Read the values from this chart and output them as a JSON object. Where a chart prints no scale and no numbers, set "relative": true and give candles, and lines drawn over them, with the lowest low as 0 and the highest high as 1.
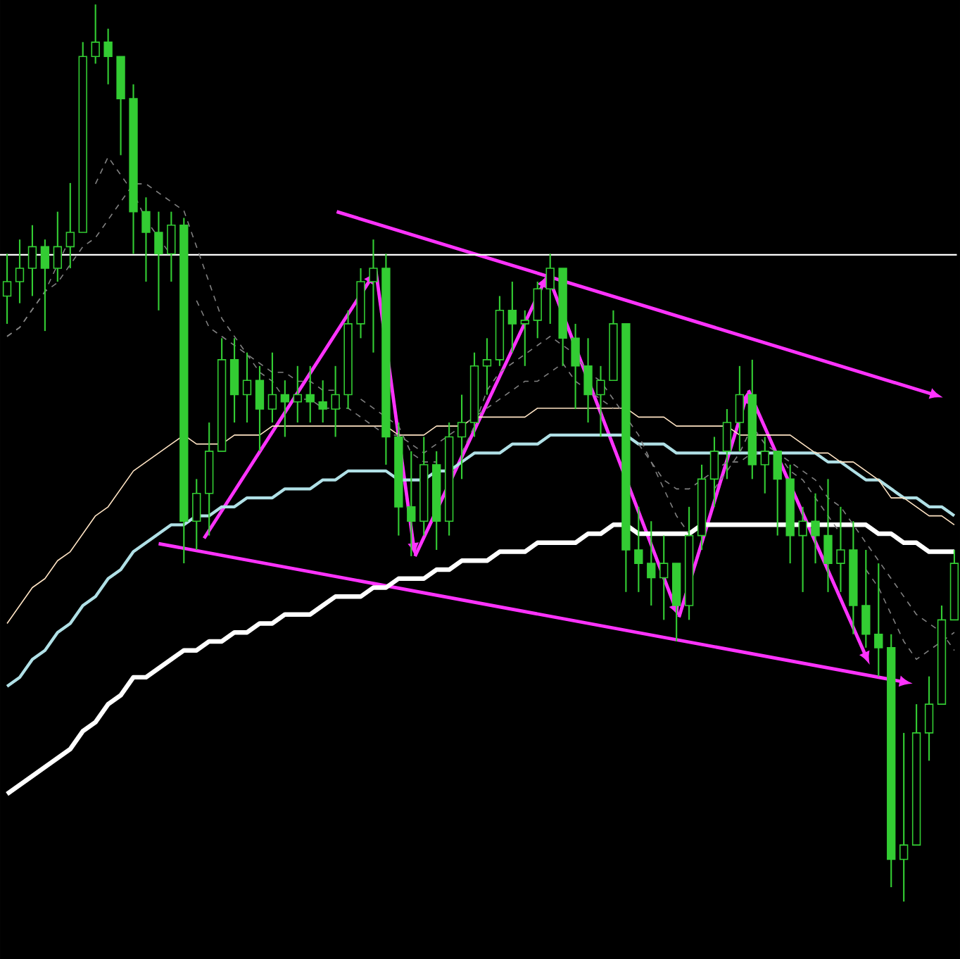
{
  "chart_data": {
    "type": "candlestick",
    "relative": true,
    "color": "#33cc33",
    "categories": [
      null,
      null,
      null,
      null,
      null,
      null,
      null,
      null,
      null,
      null,
      null,
      null,
      null,
      null,
      null,
      null,
      null,
      null,
      null,
      null,
      null,
      null,
      null,
      null,
      null,
      null,
      null,
      null,
      null,
      null,
      null,
      null,
      null,
      null,
      null,
      null,
      null,
      null,
      null,
      null,
      null,
      null,
      null,
      null,
      null,
      null,
      null,
      null,
      null,
      null,
      null,
      null,
      null,
      null,
      null,
      null,
      null,
      null,
      null,
      null,
      null,
      null,
      null,
      null,
      null,
      null,
      null,
      null,
      null,
      null,
      null,
      null,
      null,
      null,
      null,
      null
    ],
    "ohlc": [
      [
        0.675,
        0.722,
        0.644,
        0.691
      ],
      [
        0.691,
        0.738,
        0.667,
        0.706
      ],
      [
        0.706,
        0.754,
        0.675,
        0.73
      ],
      [
        0.73,
        0.738,
        0.636,
        0.706
      ],
      [
        0.706,
        0.769,
        0.691,
        0.73
      ],
      [
        0.73,
        0.801,
        0.706,
        0.746
      ],
      [
        0.746,
        0.958,
        0.746,
        0.942
      ],
      [
        0.942,
        1.0,
        0.934,
        0.958
      ],
      [
        0.958,
        0.973,
        0.911,
        0.942
      ],
      [
        0.942,
        0.942,
        0.832,
        0.895
      ],
      [
        0.895,
        0.911,
        0.722,
        0.769
      ],
      [
        0.769,
        0.785,
        0.691,
        0.746
      ],
      [
        0.746,
        0.769,
        0.659,
        0.722
      ],
      [
        0.722,
        0.769,
        0.691,
        0.754
      ],
      [
        0.754,
        0.762,
        0.377,
        0.424
      ],
      [
        0.424,
        0.471,
        0.392,
        0.455
      ],
      [
        0.455,
        0.534,
        0.408,
        0.502
      ],
      [
        0.502,
        0.628,
        0.502,
        0.604
      ],
      [
        0.604,
        0.628,
        0.534,
        0.565
      ],
      [
        0.565,
        0.612,
        0.534,
        0.581
      ],
      [
        0.581,
        0.597,
        0.502,
        0.549
      ],
      [
        0.549,
        0.612,
        0.534,
        0.565
      ],
      [
        0.565,
        0.581,
        0.518,
        0.557
      ],
      [
        0.557,
        0.597,
        0.534,
        0.565
      ],
      [
        0.565,
        0.597,
        0.534,
        0.557
      ],
      [
        0.557,
        0.581,
        0.534,
        0.549
      ],
      [
        0.549,
        0.597,
        0.518,
        0.565
      ],
      [
        0.565,
        0.659,
        0.549,
        0.644
      ],
      [
        0.644,
        0.706,
        0.628,
        0.691
      ],
      [
        0.691,
        0.738,
        0.612,
        0.706
      ],
      [
        0.706,
        0.722,
        0.487,
        0.518
      ],
      [
        0.518,
        0.534,
        0.408,
        0.44
      ],
      [
        0.44,
        0.502,
        0.385,
        0.424
      ],
      [
        0.424,
        0.518,
        0.408,
        0.487
      ],
      [
        0.487,
        0.502,
        0.392,
        0.424
      ],
      [
        0.424,
        0.534,
        0.408,
        0.518
      ],
      [
        0.518,
        0.565,
        0.471,
        0.534
      ],
      [
        0.534,
        0.612,
        0.518,
        0.597
      ],
      [
        0.597,
        0.628,
        0.565,
        0.604
      ],
      [
        0.604,
        0.675,
        0.597,
        0.659
      ],
      [
        0.659,
        0.691,
        0.612,
        0.644
      ],
      [
        0.644,
        0.659,
        0.597,
        0.648
      ],
      [
        0.648,
        0.691,
        0.628,
        0.683
      ],
      [
        0.683,
        0.722,
        0.644,
        0.706
      ],
      [
        0.706,
        0.706,
        0.597,
        0.628
      ],
      [
        0.628,
        0.644,
        0.549,
        0.597
      ],
      [
        0.597,
        0.628,
        0.534,
        0.565
      ],
      [
        0.565,
        0.597,
        0.518,
        0.581
      ],
      [
        0.581,
        0.659,
        0.581,
        0.644
      ],
      [
        0.644,
        0.644,
        0.345,
        0.392
      ],
      [
        0.392,
        0.44,
        0.345,
        0.377
      ],
      [
        0.377,
        0.424,
        0.33,
        0.361
      ],
      [
        0.361,
        0.408,
        0.314,
        0.377
      ],
      [
        0.377,
        0.377,
        0.29,
        0.33
      ],
      [
        0.33,
        0.44,
        0.314,
        0.408
      ],
      [
        0.408,
        0.487,
        0.392,
        0.471
      ],
      [
        0.471,
        0.518,
        0.44,
        0.502
      ],
      [
        0.502,
        0.549,
        0.471,
        0.534
      ],
      [
        0.534,
        0.597,
        0.502,
        0.565
      ],
      [
        0.565,
        0.604,
        0.471,
        0.487
      ],
      [
        0.487,
        0.518,
        0.455,
        0.502
      ],
      [
        0.502,
        0.502,
        0.408,
        0.471
      ],
      [
        0.471,
        0.487,
        0.377,
        0.408
      ],
      [
        0.408,
        0.44,
        0.345,
        0.424
      ],
      [
        0.424,
        0.455,
        0.377,
        0.408
      ],
      [
        0.408,
        0.471,
        0.345,
        0.377
      ],
      [
        0.377,
        0.44,
        0.345,
        0.392
      ],
      [
        0.392,
        0.424,
        0.298,
        0.33
      ],
      [
        0.33,
        0.392,
        0.283,
        0.298
      ],
      [
        0.298,
        0.377,
        0.251,
        0.283
      ],
      [
        0.283,
        0.298,
        0.016,
        0.047
      ],
      [
        0.047,
        0.188,
        0.0,
        0.063
      ],
      [
        0.063,
        0.22,
        0.063,
        0.188
      ],
      [
        0.188,
        0.251,
        0.157,
        0.22
      ],
      [
        0.22,
        0.33,
        0.22,
        0.314
      ],
      [
        0.314,
        0.392,
        0.314,
        0.377
      ]
    ],
    "series": [
      {
        "type": "line",
        "color": "#ffffff",
        "values": [
          0.12,
          0.13,
          0.14,
          0.15,
          0.16,
          0.17,
          0.19,
          0.2,
          0.22,
          0.23,
          0.25,
          0.25,
          0.26,
          0.27,
          0.28,
          0.28,
          0.29,
          0.29,
          0.3,
          0.3,
          0.31,
          0.31,
          0.32,
          0.32,
          0.32,
          0.33,
          0.34,
          0.34,
          0.34,
          0.35,
          0.35,
          0.36,
          0.36,
          0.36,
          0.37,
          0.37,
          0.38,
          0.38,
          0.38,
          0.39,
          0.39,
          0.39,
          0.4,
          0.4,
          0.4,
          0.4,
          0.41,
          0.41,
          0.42,
          0.42,
          0.41,
          0.41,
          0.41,
          0.41,
          0.41,
          0.42,
          0.42,
          0.42,
          0.42,
          0.42,
          0.42,
          0.42,
          0.42,
          0.42,
          0.42,
          0.42,
          0.42,
          0.42,
          0.42,
          0.41,
          0.41,
          0.4,
          0.4,
          0.39,
          0.39,
          0.39
        ]
      },
      {
        "type": "line",
        "color": "#b0e0e6",
        "values": [
          0.24,
          0.25,
          0.27,
          0.28,
          0.3,
          0.31,
          0.33,
          0.34,
          0.36,
          0.37,
          0.39,
          0.4,
          0.41,
          0.42,
          0.42,
          0.43,
          0.43,
          0.44,
          0.44,
          0.45,
          0.45,
          0.45,
          0.46,
          0.46,
          0.46,
          0.47,
          0.47,
          0.48,
          0.48,
          0.48,
          0.48,
          0.47,
          0.47,
          0.47,
          0.48,
          0.48,
          0.49,
          0.5,
          0.5,
          0.5,
          0.51,
          0.51,
          0.51,
          0.52,
          0.52,
          0.52,
          0.52,
          0.52,
          0.52,
          0.52,
          0.51,
          0.51,
          0.51,
          0.5,
          0.5,
          0.5,
          0.5,
          0.5,
          0.5,
          0.5,
          0.5,
          0.5,
          0.5,
          0.5,
          0.5,
          0.49,
          0.49,
          0.48,
          0.47,
          0.47,
          0.46,
          0.45,
          0.45,
          0.44,
          0.44,
          0.43
        ]
      },
      {
        "type": "line",
        "color": "#ffe4c4",
        "values": [
          0.31,
          0.33,
          0.35,
          0.36,
          0.38,
          0.39,
          0.41,
          0.43,
          0.44,
          0.46,
          0.48,
          0.49,
          0.5,
          0.51,
          0.52,
          0.51,
          0.51,
          0.51,
          0.52,
          0.52,
          0.52,
          0.53,
          0.53,
          0.53,
          0.53,
          0.53,
          0.53,
          0.53,
          0.53,
          0.53,
          0.53,
          0.52,
          0.52,
          0.52,
          0.53,
          0.53,
          0.53,
          0.54,
          0.54,
          0.54,
          0.54,
          0.54,
          0.55,
          0.55,
          0.55,
          0.55,
          0.55,
          0.55,
          0.55,
          0.55,
          0.54,
          0.54,
          0.54,
          0.53,
          0.53,
          0.53,
          0.53,
          0.53,
          0.52,
          0.52,
          0.52,
          0.52,
          0.52,
          0.51,
          0.5,
          0.5,
          0.49,
          0.49,
          0.48,
          0.47,
          0.45,
          0.45,
          0.44,
          0.43,
          0.43,
          0.42
        ]
      },
      {
        "type": "line",
        "color": "#808080",
        "line_style": "dashed",
        "values": [
          0.63,
          0.64,
          0.66,
          0.68,
          0.71,
          0.74,
          null,
          0.8,
          0.83,
          0.81,
          0.79,
          0.76,
          0.74,
          0.72,
          null,
          0.67,
          0.64,
          0.63,
          0.62,
          0.61,
          0.6,
          0.59,
          0.59,
          0.58,
          0.58,
          0.57,
          0.57,
          null,
          0.56,
          0.55,
          0.54,
          0.53,
          0.5,
          0.49,
          0.49,
          null,
          0.5,
          0.53,
          0.57,
          0.59,
          0.6,
          0.61,
          0.62,
          0.63,
          0.62,
          0.61,
          0.59,
          0.58,
          0.56,
          0.54,
          0.52,
          0.49,
          0.46,
          0.43,
          0.41,
          null,
          0.46,
          0.48,
          0.5,
          0.53,
          0.51,
          0.5,
          0.48,
          0.47,
          0.45,
          0.43,
          0.41,
          null,
          0.37,
          0.35,
          0.32,
          0.29,
          0.27,
          0.28,
          0.29,
          0.3
        ]
      },
      {
        "type": "line",
        "color": "#808080",
        "line_style": "dashed",
        "values": [
          0.63,
          0.64,
          0.66,
          0.68,
          0.69,
          0.71,
          0.73,
          0.74,
          0.76,
          0.78,
          0.8,
          0.8,
          0.79,
          0.78,
          0.77,
          0.73,
          0.69,
          0.65,
          0.63,
          0.61,
          0.59,
          0.58,
          0.56,
          0.56,
          0.56,
          0.55,
          0.55,
          0.55,
          0.54,
          0.53,
          0.52,
          0.52,
          0.51,
          0.5,
          0.51,
          0.52,
          0.53,
          0.54,
          0.55,
          0.56,
          0.57,
          0.58,
          0.58,
          0.59,
          0.6,
          0.58,
          0.57,
          0.56,
          0.55,
          null,
          0.51,
          0.49,
          0.47,
          0.46,
          0.46,
          0.47,
          0.48,
          0.49,
          0.49,
          0.5,
          0.5,
          0.5,
          0.49,
          0.48,
          0.47,
          0.45,
          0.44,
          0.42,
          0.4,
          0.38,
          0.36,
          0.34,
          0.32,
          0.31,
          0.3,
          0.28
        ]
      }
    ],
    "ref_lines": [
      {
        "axis": "y",
        "value": 0.721,
        "color": "#ffffff"
      }
    ]
  }
}
